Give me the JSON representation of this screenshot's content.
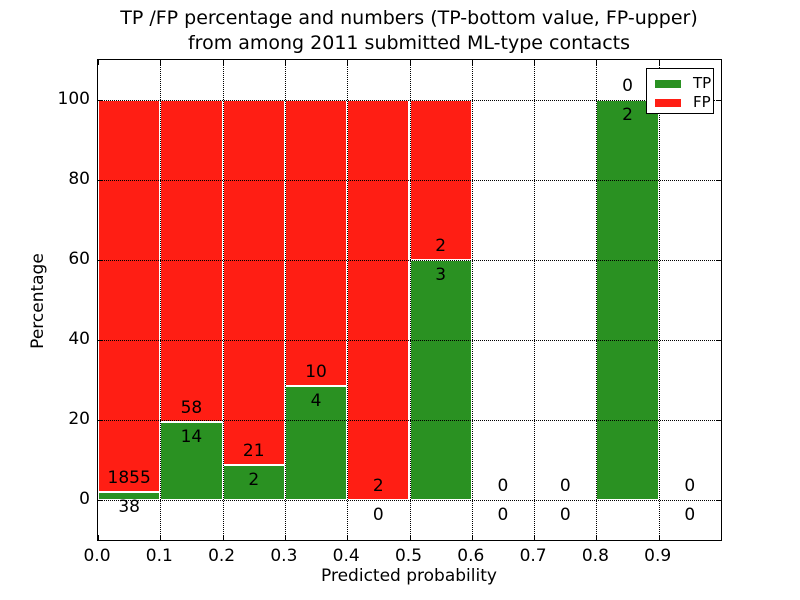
{
  "title": {
    "line1": "TP /FP percentage and numbers (TP-bottom value, FP-upper)",
    "line2": "from among 2011 submitted ML-type contacts"
  },
  "chart_data": {
    "type": "bar",
    "stacked": true,
    "normalized_to_percent": true,
    "title": "TP /FP percentage and numbers (TP-bottom value, FP-upper)\nfrom among 2011 submitted ML-type contacts",
    "xlabel": "Predicted probability",
    "ylabel": "Percentage",
    "xlim": [
      0.0,
      1.0
    ],
    "ylim": [
      -10,
      110
    ],
    "x_ticks": [
      "0.0",
      "0.1",
      "0.2",
      "0.3",
      "0.4",
      "0.5",
      "0.6",
      "0.7",
      "0.8",
      "0.9"
    ],
    "y_ticks": [
      0,
      20,
      40,
      60,
      80,
      100
    ],
    "grid": "dotted, drawn over bars",
    "legend": {
      "position": "upper right",
      "entries": [
        {
          "label": "TP",
          "color": "#2a9122"
        },
        {
          "label": "FP",
          "color": "#ff1e14"
        }
      ]
    },
    "bins": [
      {
        "range": [
          0.0,
          0.1
        ],
        "tp": 38,
        "fp": 1855,
        "tp_pct": 2.01
      },
      {
        "range": [
          0.1,
          0.2
        ],
        "tp": 14,
        "fp": 58,
        "tp_pct": 19.44
      },
      {
        "range": [
          0.2,
          0.3
        ],
        "tp": 2,
        "fp": 21,
        "tp_pct": 8.7
      },
      {
        "range": [
          0.3,
          0.4
        ],
        "tp": 4,
        "fp": 10,
        "tp_pct": 28.57
      },
      {
        "range": [
          0.4,
          0.5
        ],
        "tp": 0,
        "fp": 2,
        "tp_pct": 0
      },
      {
        "range": [
          0.5,
          0.6
        ],
        "tp": 3,
        "fp": 2,
        "tp_pct": 60
      },
      {
        "range": [
          0.6,
          0.7
        ],
        "tp": 0,
        "fp": 0,
        "tp_pct": null
      },
      {
        "range": [
          0.7,
          0.8
        ],
        "tp": 0,
        "fp": 0,
        "tp_pct": null
      },
      {
        "range": [
          0.8,
          0.9
        ],
        "tp": 2,
        "fp": 0,
        "tp_pct": 100
      },
      {
        "range": [
          0.9,
          1.0
        ],
        "tp": 0,
        "fp": 0,
        "tp_pct": null
      }
    ],
    "colors": {
      "tp": "#2a9122",
      "fp": "#ff1e14",
      "bar_edge": "#ffffff",
      "grid": "#000000",
      "background": "#ffffff"
    }
  }
}
